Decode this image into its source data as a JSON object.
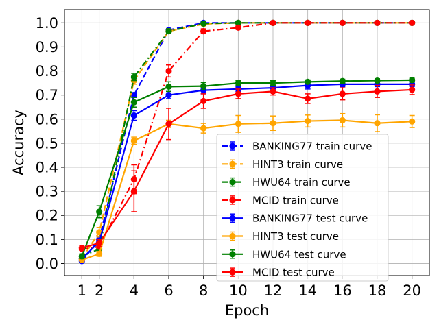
{
  "chart_data": {
    "type": "line",
    "xlabel": "Epoch",
    "ylabel": "Accuracy",
    "xlim": [
      0,
      21
    ],
    "ylim": [
      -0.05,
      1.055
    ],
    "xticks": [
      1,
      2,
      4,
      6,
      8,
      10,
      12,
      14,
      16,
      18,
      20
    ],
    "yticks": [
      0.0,
      0.1,
      0.2,
      0.3,
      0.4,
      0.5,
      0.6,
      0.7,
      0.8,
      0.9,
      1.0
    ],
    "ytick_labels": [
      "0.0",
      "0.1",
      "0.2",
      "0.3",
      "0.4",
      "0.5",
      "0.6",
      "0.7",
      "0.8",
      "0.9",
      "1.0"
    ],
    "grid": true,
    "legend_position": "lower-right",
    "x": [
      1,
      2,
      4,
      6,
      8,
      10,
      12,
      14,
      16,
      18,
      20
    ],
    "series": [
      {
        "name": "BANKING77 train curve",
        "color": "#0000ff",
        "style": "dashed",
        "values": [
          0.01,
          0.1,
          0.7,
          0.97,
          1.0,
          1.0,
          1.0,
          1.0,
          1.0,
          1.0,
          1.0
        ],
        "errors": [
          0.005,
          0.01,
          0.01,
          0.005,
          0.0,
          0.0,
          0.0,
          0.0,
          0.0,
          0.0,
          0.0
        ]
      },
      {
        "name": "HINT3 train curve",
        "color": "#ffa500",
        "style": "dashed",
        "values": [
          0.02,
          0.13,
          0.76,
          0.965,
          0.995,
          1.0,
          1.0,
          1.0,
          1.0,
          1.0,
          1.0
        ],
        "errors": [
          0.005,
          0.02,
          0.015,
          0.01,
          0.003,
          0.0,
          0.0,
          0.0,
          0.0,
          0.0,
          0.0
        ]
      },
      {
        "name": "HWU64 train curve",
        "color": "#008000",
        "style": "dashdot",
        "values": [
          0.03,
          0.06,
          0.775,
          0.965,
          0.997,
          1.0,
          1.0,
          1.0,
          1.0,
          1.0,
          1.0
        ],
        "errors": [
          0.005,
          0.01,
          0.015,
          0.01,
          0.002,
          0.0,
          0.0,
          0.0,
          0.0,
          0.0,
          0.0
        ]
      },
      {
        "name": "MCID train curve",
        "color": "#ff0000",
        "style": "dashdot",
        "values": [
          0.06,
          0.07,
          0.35,
          0.8,
          0.965,
          0.98,
          1.0,
          1.0,
          1.0,
          1.0,
          1.0
        ],
        "errors": [
          0.005,
          0.01,
          0.06,
          0.025,
          0.01,
          0.007,
          0.0,
          0.0,
          0.0,
          0.0,
          0.0
        ]
      },
      {
        "name": "BANKING77 test curve",
        "color": "#0000ff",
        "style": "solid",
        "values": [
          0.02,
          0.09,
          0.615,
          0.7,
          0.72,
          0.725,
          0.73,
          0.74,
          0.745,
          0.745,
          0.745
        ],
        "errors": [
          0.01,
          0.01,
          0.02,
          0.015,
          0.015,
          0.01,
          0.01,
          0.015,
          0.01,
          0.01,
          0.01
        ]
      },
      {
        "name": "HINT3 test curve",
        "color": "#ffa500",
        "style": "solid",
        "values": [
          0.015,
          0.04,
          0.51,
          0.58,
          0.562,
          0.58,
          0.583,
          0.592,
          0.595,
          0.583,
          0.59
        ],
        "errors": [
          0.005,
          0.01,
          0.015,
          0.015,
          0.02,
          0.035,
          0.03,
          0.025,
          0.028,
          0.035,
          0.025
        ]
      },
      {
        "name": "HWU64 test curve",
        "color": "#008000",
        "style": "solid",
        "values": [
          0.03,
          0.215,
          0.67,
          0.735,
          0.737,
          0.75,
          0.75,
          0.755,
          0.758,
          0.76,
          0.762
        ],
        "errors": [
          0.01,
          0.025,
          0.02,
          0.02,
          0.015,
          0.01,
          0.01,
          0.008,
          0.008,
          0.008,
          0.008
        ]
      },
      {
        "name": "MCID test curve",
        "color": "#ff0000",
        "style": "solid",
        "values": [
          0.065,
          0.085,
          0.3,
          0.58,
          0.675,
          0.705,
          0.715,
          0.685,
          0.705,
          0.715,
          0.722
        ],
        "errors": [
          0.01,
          0.015,
          0.085,
          0.065,
          0.03,
          0.02,
          0.015,
          0.02,
          0.025,
          0.025,
          0.02
        ]
      }
    ]
  }
}
